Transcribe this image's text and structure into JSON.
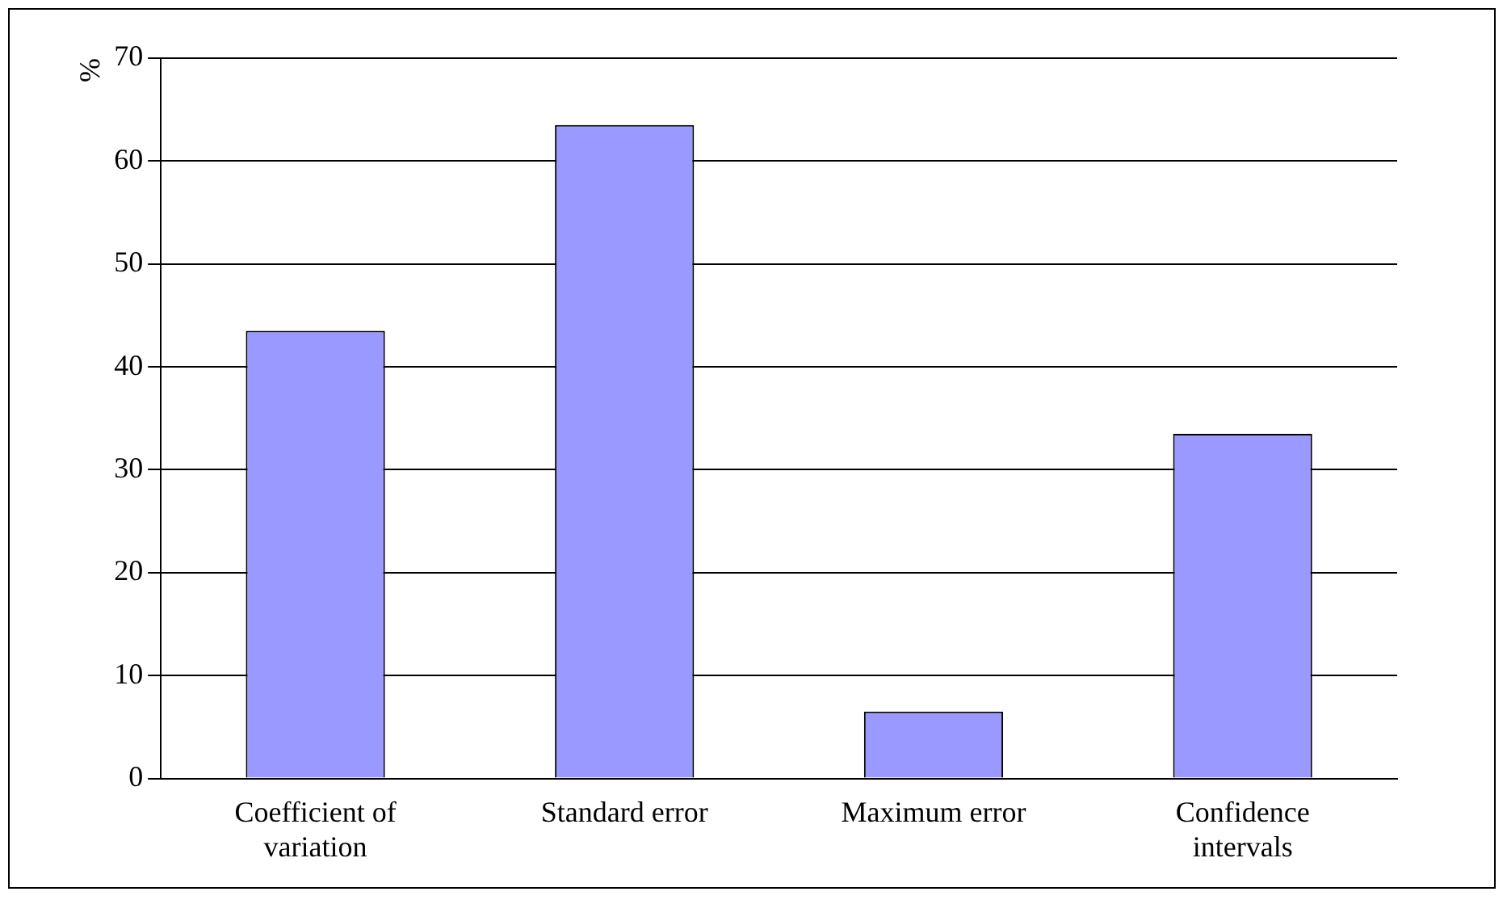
{
  "chart_data": {
    "type": "bar",
    "ylabel": "%",
    "categories": [
      "Coefficient of variation",
      "Standard error",
      "Maximum error",
      "Confidence intervals"
    ],
    "values": [
      43.5,
      63.5,
      6.5,
      33.5
    ],
    "color": "#9999ff",
    "ylim": [
      0,
      70
    ],
    "yticks": [
      0,
      10,
      20,
      30,
      40,
      50,
      60,
      70
    ],
    "grid": "y",
    "legend": false
  }
}
